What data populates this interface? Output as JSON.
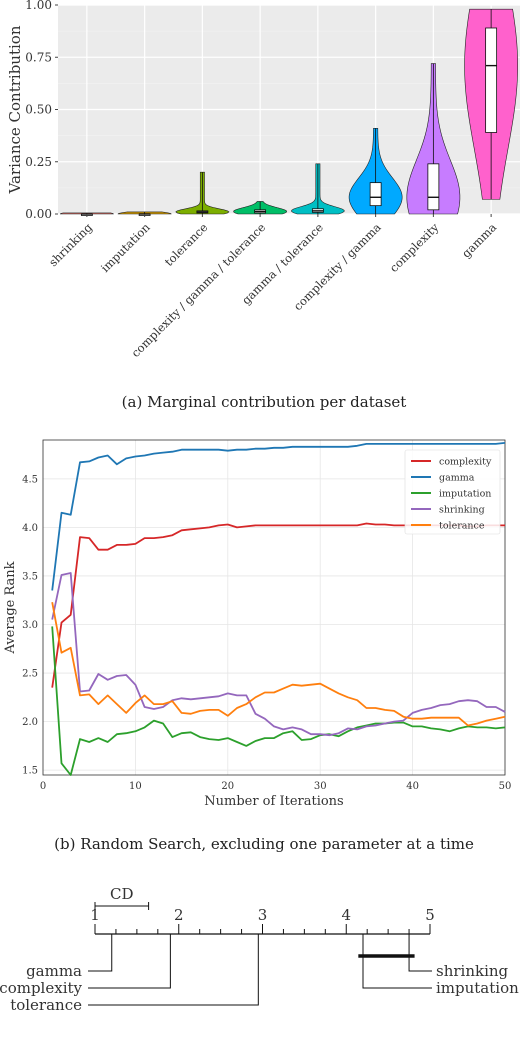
{
  "chart_data": [
    {
      "type": "violin",
      "ylabel": "Variance Contribution",
      "ylim": [
        0,
        1
      ],
      "yticks": [
        "0.00",
        "0.25",
        "0.50",
        "0.75",
        "1.00"
      ],
      "categories": [
        {
          "name": "shrinking",
          "min": 0.0,
          "q1": 0.0,
          "median": 0.0,
          "q3": 0.0,
          "max": 0.005,
          "color": "#F8766D"
        },
        {
          "name": "imputation",
          "min": 0.0,
          "q1": 0.0,
          "median": 0.0,
          "q3": 0.0,
          "max": 0.01,
          "color": "#CD9600"
        },
        {
          "name": "tolerance",
          "min": 0.0,
          "q1": 0.005,
          "median": 0.01,
          "q3": 0.015,
          "max": 0.2,
          "color": "#7CAE00"
        },
        {
          "name": "complexity / gamma / tolerance",
          "min": 0.0,
          "q1": 0.005,
          "median": 0.012,
          "q3": 0.02,
          "max": 0.06,
          "color": "#00BE67"
        },
        {
          "name": "gamma / tolerance",
          "min": 0.0,
          "q1": 0.008,
          "median": 0.015,
          "q3": 0.025,
          "max": 0.24,
          "color": "#00BFC4"
        },
        {
          "name": "complexity / gamma",
          "min": 0.0,
          "q1": 0.04,
          "median": 0.08,
          "q3": 0.15,
          "max": 0.41,
          "color": "#00A9FF"
        },
        {
          "name": "complexity",
          "min": 0.0,
          "q1": 0.02,
          "median": 0.08,
          "q3": 0.24,
          "max": 0.72,
          "color": "#C77CFF"
        },
        {
          "name": "gamma",
          "min": 0.07,
          "q1": 0.39,
          "median": 0.71,
          "q3": 0.89,
          "max": 0.98,
          "color": "#FF61CC"
        }
      ]
    },
    {
      "type": "line",
      "xlabel": "Number of Iterations",
      "ylabel": "Average Rank",
      "xlim": [
        0,
        50
      ],
      "ylim": [
        1.45,
        4.9
      ],
      "xticks": [
        "0",
        "10",
        "20",
        "30",
        "40",
        "50"
      ],
      "yticks": [
        "1.5",
        "2.0",
        "2.5",
        "3.0",
        "3.5",
        "4.0",
        "4.5"
      ],
      "legend": "top-right",
      "series": [
        {
          "name": "complexity",
          "color": "#d62728",
          "values": [
            2.35,
            3.02,
            3.1,
            3.9,
            3.89,
            3.77,
            3.77,
            3.82,
            3.82,
            3.83,
            3.89,
            3.89,
            3.9,
            3.92,
            3.97,
            3.98,
            3.99,
            4.0,
            4.02,
            4.03,
            4.0,
            4.01,
            4.02,
            4.02,
            4.02,
            4.02,
            4.02,
            4.02,
            4.02,
            4.02,
            4.02,
            4.02,
            4.02,
            4.02,
            4.04,
            4.03,
            4.03,
            4.02,
            4.02,
            4.02,
            4.02,
            4.02,
            4.02,
            4.02,
            4.02,
            4.01,
            4.01,
            4.02,
            4.02,
            4.02
          ]
        },
        {
          "name": "gamma",
          "color": "#1f77b4",
          "values": [
            3.35,
            4.15,
            4.13,
            4.67,
            4.68,
            4.72,
            4.74,
            4.65,
            4.71,
            4.73,
            4.74,
            4.76,
            4.77,
            4.78,
            4.8,
            4.8,
            4.8,
            4.8,
            4.8,
            4.79,
            4.8,
            4.8,
            4.81,
            4.81,
            4.82,
            4.82,
            4.83,
            4.83,
            4.83,
            4.83,
            4.83,
            4.83,
            4.83,
            4.84,
            4.86,
            4.86,
            4.86,
            4.86,
            4.86,
            4.86,
            4.86,
            4.86,
            4.86,
            4.86,
            4.86,
            4.86,
            4.86,
            4.86,
            4.86,
            4.87
          ]
        },
        {
          "name": "imputation",
          "color": "#2ca02c",
          "values": [
            2.98,
            1.57,
            1.45,
            1.82,
            1.79,
            1.83,
            1.79,
            1.87,
            1.88,
            1.9,
            1.94,
            2.01,
            1.98,
            1.84,
            1.88,
            1.89,
            1.84,
            1.82,
            1.81,
            1.83,
            1.79,
            1.75,
            1.8,
            1.83,
            1.83,
            1.88,
            1.9,
            1.81,
            1.82,
            1.86,
            1.87,
            1.85,
            1.9,
            1.94,
            1.96,
            1.98,
            1.98,
            1.99,
            1.99,
            1.95,
            1.95,
            1.93,
            1.92,
            1.9,
            1.93,
            1.95,
            1.94,
            1.94,
            1.93,
            1.94
          ]
        },
        {
          "name": "shrinking",
          "color": "#9467bd",
          "values": [
            3.05,
            3.51,
            3.53,
            2.31,
            2.32,
            2.49,
            2.43,
            2.47,
            2.48,
            2.38,
            2.15,
            2.13,
            2.15,
            2.22,
            2.24,
            2.23,
            2.24,
            2.25,
            2.26,
            2.29,
            2.27,
            2.27,
            2.08,
            2.03,
            1.95,
            1.92,
            1.94,
            1.92,
            1.87,
            1.87,
            1.86,
            1.88,
            1.93,
            1.92,
            1.95,
            1.96,
            1.98,
            2.0,
            2.01,
            2.09,
            2.12,
            2.14,
            2.17,
            2.18,
            2.21,
            2.22,
            2.21,
            2.15,
            2.15,
            2.1
          ]
        },
        {
          "name": "tolerance",
          "color": "#ff7f0e",
          "values": [
            3.23,
            2.71,
            2.76,
            2.27,
            2.28,
            2.18,
            2.27,
            2.18,
            2.09,
            2.19,
            2.27,
            2.18,
            2.18,
            2.21,
            2.09,
            2.08,
            2.11,
            2.12,
            2.12,
            2.06,
            2.14,
            2.18,
            2.25,
            2.3,
            2.3,
            2.34,
            2.38,
            2.37,
            2.38,
            2.39,
            2.34,
            2.29,
            2.25,
            2.22,
            2.14,
            2.14,
            2.12,
            2.11,
            2.05,
            2.03,
            2.03,
            2.04,
            2.04,
            2.04,
            2.04,
            1.96,
            1.98,
            2.01,
            2.03,
            2.05
          ]
        }
      ]
    },
    {
      "type": "critical-difference",
      "axis": [
        1,
        5
      ],
      "ticks": [
        "1",
        "2",
        "3",
        "4",
        "5"
      ],
      "cd_label": "CD",
      "cd_value": 0.64,
      "left": [
        {
          "name": "gamma",
          "rank": 1.2
        },
        {
          "name": "complexity",
          "rank": 1.9
        },
        {
          "name": "tolerance",
          "rank": 2.95
        }
      ],
      "right": [
        {
          "name": "shrinking",
          "rank": 4.75
        },
        {
          "name": "imputation",
          "rank": 4.2
        }
      ],
      "cliques": [
        [
          4.18,
          4.78
        ]
      ]
    }
  ],
  "captions": {
    "a": "(a)  Marginal contribution per dataset",
    "b": "(b)  Random Search, excluding one parameter at a time"
  }
}
